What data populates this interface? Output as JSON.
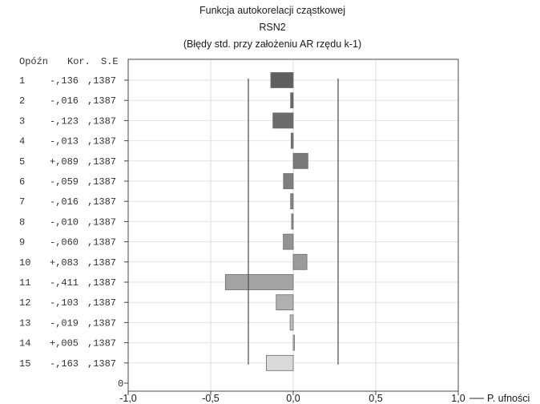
{
  "chart_data": {
    "type": "bar",
    "orientation": "horizontal",
    "title": "Funkcja autokorelacji cząstkowej",
    "subtitle": "RSN2",
    "note": "(Błędy std. przy założeniu AR rzędu k-1)",
    "table_header": [
      "Opóźn",
      "Kor.",
      "S.E"
    ],
    "rows": [
      {
        "lag": "1",
        "corr_label": "-,136",
        "se_label": ",1387",
        "value": -0.136
      },
      {
        "lag": "2",
        "corr_label": "-,016",
        "se_label": ",1387",
        "value": -0.016
      },
      {
        "lag": "3",
        "corr_label": "-,123",
        "se_label": ",1387",
        "value": -0.123
      },
      {
        "lag": "4",
        "corr_label": "-,013",
        "se_label": ",1387",
        "value": -0.013
      },
      {
        "lag": "5",
        "corr_label": "+,089",
        "se_label": ",1387",
        "value": 0.089
      },
      {
        "lag": "6",
        "corr_label": "-,059",
        "se_label": ",1387",
        "value": -0.059
      },
      {
        "lag": "7",
        "corr_label": "-,016",
        "se_label": ",1387",
        "value": -0.016
      },
      {
        "lag": "8",
        "corr_label": "-,010",
        "se_label": ",1387",
        "value": -0.01
      },
      {
        "lag": "9",
        "corr_label": "-,060",
        "se_label": ",1387",
        "value": -0.06
      },
      {
        "lag": "10",
        "corr_label": "+,083",
        "se_label": ",1387",
        "value": 0.083
      },
      {
        "lag": "11",
        "corr_label": "-,411",
        "se_label": ",1387",
        "value": -0.411
      },
      {
        "lag": "12",
        "corr_label": "-,103",
        "se_label": ",1387",
        "value": -0.103
      },
      {
        "lag": "13",
        "corr_label": "-,019",
        "se_label": ",1387",
        "value": -0.019
      },
      {
        "lag": "14",
        "corr_label": "+,005",
        "se_label": ",1387",
        "value": 0.005
      },
      {
        "lag": "15",
        "corr_label": "-,163",
        "se_label": ",1387",
        "value": -0.163
      }
    ],
    "zero_row_label": "0",
    "confidence_limits": [
      -0.2719,
      0.2719
    ],
    "confidence_label": "P. ufności",
    "xlim": [
      -1.0,
      1.0
    ],
    "xticks": [
      -1.0,
      -0.5,
      0.0,
      0.5,
      1.0
    ],
    "xtick_labels": [
      "-1,0",
      "-0,5",
      "0,0",
      "0,5",
      "1,0"
    ],
    "bar_colors": [
      "#5f5f5f",
      "#666666",
      "#6c6c6c",
      "#727272",
      "#787878",
      "#7f7f7f",
      "#868686",
      "#8c8c8c",
      "#939393",
      "#9b9b9b",
      "#a3a3a3",
      "#b0b0b0",
      "#bdbdbd",
      "#cacaca",
      "#dadada"
    ],
    "grid": true
  }
}
